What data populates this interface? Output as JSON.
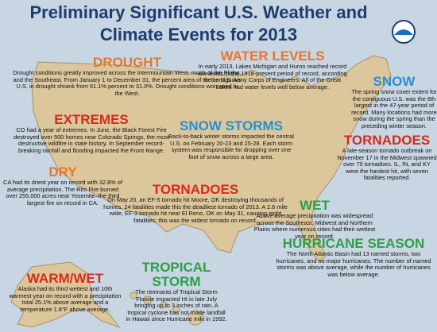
{
  "header": {
    "title": "Preliminary Significant U.S. Weather and Climate Events for 2013"
  },
  "events": [
    {
      "heading": "DROUGHT",
      "text": "Drought conditions greatly improved across the Intermountain West, much of the Plains, and the Southeast. From January 1 to December 31, the percent area of the contiguous U.S. in drought shrank from 61.1% percent to 31.0%. Drought conditions worsened in the West."
    },
    {
      "heading": "WATER LEVELS",
      "text": "In early 2013, Lakes Michigan and Huron reached record low levels in the 1918-present period of record, according to the U.S. Army Corps of Engineers. All of the Great Lakes had water levels well below average."
    },
    {
      "heading": "SNOW",
      "text": "The spring snow cover extent for the contiguous U.S. was the 8th largest in the 47-year period of record. Many locations had more snow during the spring than the preceding winter season."
    },
    {
      "heading": "EXTREMES",
      "text": "CO had a year of extremes. In June, the Black Forest Fire destroyed over 500 homes near Colorado Springs, the most destructive wildfire in state history. In September record-breaking rainfall and flooding impacted the Front Range."
    },
    {
      "heading": "SNOW STORMS",
      "text": "Back-to-back winter storms impacted the central U.S. on February 20-23 and 25-28. Each storm system was responsible for dropping over one foot of snow across a large area."
    },
    {
      "heading": "TORNADOES",
      "text": "A late-season tornado outbreak on November 17 in the Midwest spawned over 70 tornadoes. IL, IN, and KY were the hardest hit, with seven fatalities reported."
    },
    {
      "heading": "DRY",
      "text": "CA had its driest year on record with 32.8% of average precipitation. The Rim Fire burned over 255,000 acres near Yosemite–the third largest fire on record in CA."
    },
    {
      "heading": "TORNADOES",
      "text": "On May 20, an EF-5 tornado hit Moore, OK destroying thousands of homes. 24 fatalities made this the deadliest tornado of 2013. A 2.6 mile wide, EF-3 tornado hit near El Reno, OK on May 31, causing eight fatalities; this was the widest tornado on record."
    },
    {
      "heading": "WET",
      "text": "Above average precipitation was widespread across the Southeast, Midwest and Northern Plains where numerous cities had their wettest year on record."
    },
    {
      "heading": "HURRICANE SEASON",
      "text": "The North Atlantic Basin had 13 named storms, two hurricanes, and no major hurricanes. The number of named storms was above average, while the number of hurricanes was below average."
    },
    {
      "heading": "WARM/WET",
      "text": "Alaska had its third wettest and 10th warmest year on record with a precipitation total 25.1% above average and a temperature 1.8°F above average."
    },
    {
      "heading": "TROPICAL STORM",
      "text": "The remnants of Tropical Storm Flossie impacted HI in late July bringing up to 3 inches of rain. A tropical cyclone has not made landfall in Hawaii since Hurricane Iniki in 1992."
    }
  ]
}
